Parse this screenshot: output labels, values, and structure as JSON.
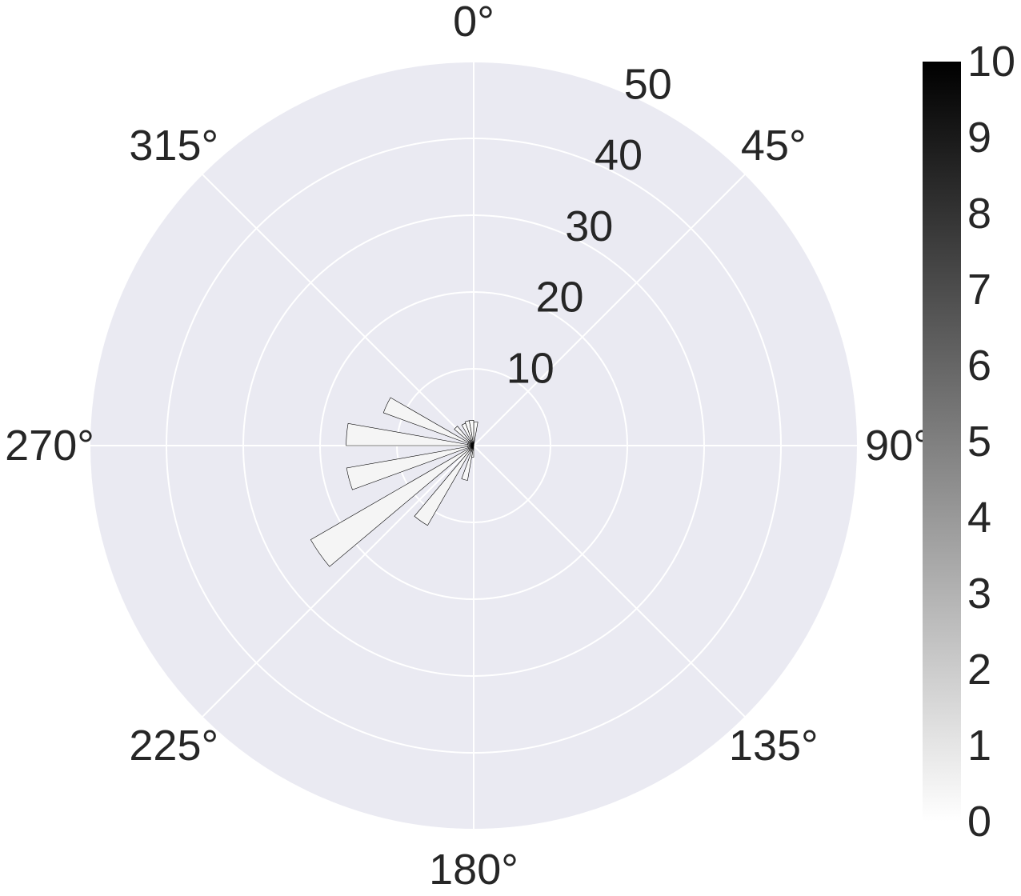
{
  "chart_data": {
    "type": "polar-bar",
    "title": "",
    "theta_direction": "clockwise",
    "theta_zero": "top",
    "angular_ticks": [
      {
        "deg": 0,
        "label": "0°"
      },
      {
        "deg": 45,
        "label": "45°"
      },
      {
        "deg": 90,
        "label": "90°"
      },
      {
        "deg": 135,
        "label": "135°"
      },
      {
        "deg": 180,
        "label": "180°"
      },
      {
        "deg": 225,
        "label": "225°"
      },
      {
        "deg": 270,
        "label": "270°"
      },
      {
        "deg": 315,
        "label": "315°"
      }
    ],
    "radial_ticks": [
      {
        "value": 10,
        "label": "10"
      },
      {
        "value": 20,
        "label": "20"
      },
      {
        "value": 30,
        "label": "30"
      },
      {
        "value": 40,
        "label": "40"
      },
      {
        "value": 50,
        "label": "50"
      }
    ],
    "rlim": [
      0,
      50
    ],
    "bins": [
      {
        "theta_start": 0,
        "theta_end": 10,
        "r": 3.1,
        "color_value": 0.2
      },
      {
        "theta_start": 180,
        "theta_end": 190,
        "r": 1.5,
        "color_value": 0.2
      },
      {
        "theta_start": 190,
        "theta_end": 200,
        "r": 4.6,
        "color_value": 0.3
      },
      {
        "theta_start": 200,
        "theta_end": 210,
        "r": 0.8,
        "color_value": 0.2
      },
      {
        "theta_start": 210,
        "theta_end": 220,
        "r": 12.0,
        "color_value": 0.4
      },
      {
        "theta_start": 220,
        "theta_end": 230,
        "r": 0.8,
        "color_value": 0.2
      },
      {
        "theta_start": 230,
        "theta_end": 240,
        "r": 24.5,
        "color_value": 0.4
      },
      {
        "theta_start": 240,
        "theta_end": 250,
        "r": 0.8,
        "color_value": 0.2
      },
      {
        "theta_start": 250,
        "theta_end": 260,
        "r": 16.8,
        "color_value": 0.4
      },
      {
        "theta_start": 260,
        "theta_end": 270,
        "r": 0.8,
        "color_value": 0.2
      },
      {
        "theta_start": 270,
        "theta_end": 280,
        "r": 16.6,
        "color_value": 0.4
      },
      {
        "theta_start": 280,
        "theta_end": 290,
        "r": 0.8,
        "color_value": 0.2
      },
      {
        "theta_start": 290,
        "theta_end": 300,
        "r": 12.5,
        "color_value": 0.4
      },
      {
        "theta_start": 300,
        "theta_end": 310,
        "r": 0.8,
        "color_value": 0.2
      },
      {
        "theta_start": 310,
        "theta_end": 320,
        "r": 3.3,
        "color_value": 0.3
      },
      {
        "theta_start": 320,
        "theta_end": 330,
        "r": 0.8,
        "color_value": 0.2
      },
      {
        "theta_start": 330,
        "theta_end": 340,
        "r": 3.1,
        "color_value": 0.2
      },
      {
        "theta_start": 340,
        "theta_end": 350,
        "r": 3.3,
        "color_value": 0.2
      },
      {
        "theta_start": 350,
        "theta_end": 360,
        "r": 3.3,
        "color_value": 0.2
      }
    ],
    "colorbar": {
      "colormap": "greys",
      "range": [
        0,
        10
      ],
      "ticks": [
        {
          "value": 0,
          "label": "0"
        },
        {
          "value": 1,
          "label": "1"
        },
        {
          "value": 2,
          "label": "2"
        },
        {
          "value": 3,
          "label": "3"
        },
        {
          "value": 4,
          "label": "4"
        },
        {
          "value": 5,
          "label": "5"
        },
        {
          "value": 6,
          "label": "6"
        },
        {
          "value": 7,
          "label": "7"
        },
        {
          "value": 8,
          "label": "8"
        },
        {
          "value": 9,
          "label": "9"
        },
        {
          "value": 10,
          "label": "10"
        }
      ]
    },
    "grid": true,
    "colors": {
      "background": "#eaeaf2",
      "gridline": "#ffffff",
      "text": "#262626",
      "bar_edge": "#000000"
    }
  }
}
